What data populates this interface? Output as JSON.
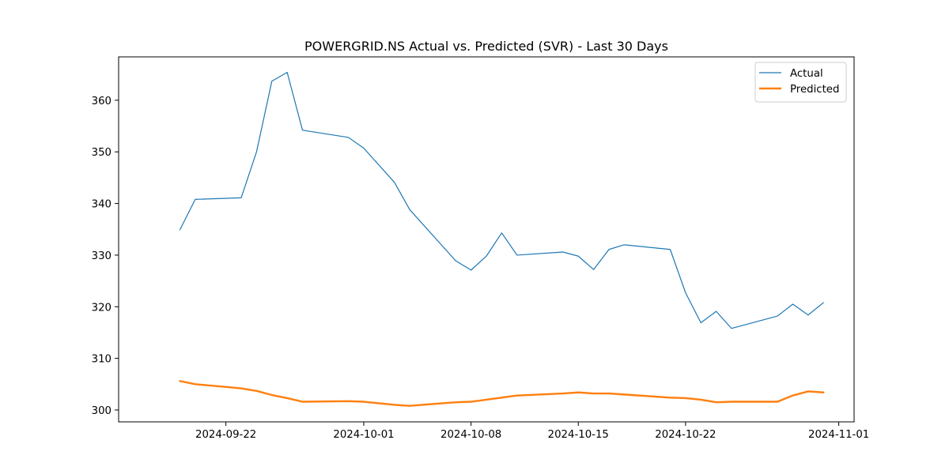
{
  "chart_data": {
    "type": "line",
    "title": "POWERGRID.NS Actual vs. Predicted (SVR) - Last 30 Days",
    "xlabel": "",
    "ylabel": "",
    "x_type": "date",
    "xlim": [
      "2024-09-15",
      "2024-11-02"
    ],
    "ylim": [
      297.7,
      368.4
    ],
    "x_ticks": [
      "2024-09-22",
      "2024-10-01",
      "2024-10-08",
      "2024-10-15",
      "2024-10-22",
      "2024-11-01"
    ],
    "y_ticks": [
      300,
      310,
      320,
      330,
      340,
      350,
      360
    ],
    "grid": false,
    "legend_position": "top-right",
    "x": [
      "2024-09-19",
      "2024-09-20",
      "2024-09-23",
      "2024-09-24",
      "2024-09-25",
      "2024-09-26",
      "2024-09-27",
      "2024-09-30",
      "2024-10-01",
      "2024-10-03",
      "2024-10-04",
      "2024-10-07",
      "2024-10-08",
      "2024-10-09",
      "2024-10-10",
      "2024-10-11",
      "2024-10-14",
      "2024-10-15",
      "2024-10-16",
      "2024-10-17",
      "2024-10-18",
      "2024-10-21",
      "2024-10-22",
      "2024-10-23",
      "2024-10-24",
      "2024-10-25",
      "2024-10-28",
      "2024-10-29",
      "2024-10-30",
      "2024-10-31"
    ],
    "series": [
      {
        "name": "Actual",
        "color": "#1f77b4",
        "values": [
          334.9,
          340.8,
          341.1,
          350.0,
          363.7,
          365.4,
          354.2,
          352.8,
          350.7,
          344.1,
          338.8,
          328.9,
          327.1,
          329.8,
          334.3,
          330.0,
          330.6,
          329.8,
          327.2,
          331.1,
          332.0,
          331.1,
          322.7,
          316.9,
          319.1,
          315.8,
          318.2,
          320.5,
          318.4,
          320.8
        ]
      },
      {
        "name": "Predicted",
        "color": "#ff7f0e",
        "values": [
          305.6,
          305.0,
          304.2,
          303.7,
          302.9,
          302.3,
          301.6,
          301.7,
          301.6,
          301.0,
          300.8,
          301.5,
          301.6,
          302.0,
          302.4,
          302.8,
          303.2,
          303.4,
          303.2,
          303.2,
          303.0,
          302.4,
          302.3,
          302.0,
          301.5,
          301.6,
          301.6,
          302.8,
          303.6,
          303.4
        ]
      }
    ]
  }
}
